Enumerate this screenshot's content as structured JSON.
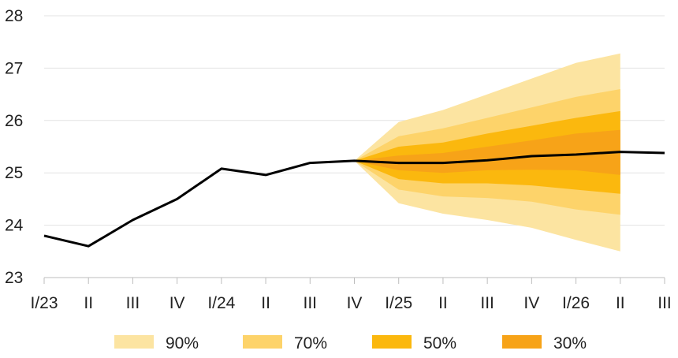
{
  "chart_data": {
    "type": "area",
    "title": "",
    "xlabel": "",
    "ylabel": "",
    "categories": [
      "I/23",
      "II",
      "III",
      "IV",
      "I/24",
      "II",
      "III",
      "IV",
      "I/25",
      "II",
      "III",
      "IV",
      "I/26",
      "II",
      "III"
    ],
    "ylim": [
      23,
      28
    ],
    "yticks": [
      23,
      24,
      25,
      26,
      27,
      28
    ],
    "grid": "horizontal",
    "legend_position": "bottom",
    "series": [
      {
        "type": "line",
        "color": "#000000",
        "values": [
          23.8,
          23.6,
          24.1,
          24.5,
          25.08,
          24.96,
          25.19,
          25.23,
          25.19,
          25.19,
          25.24,
          25.32,
          25.35,
          25.4,
          25.38
        ]
      }
    ],
    "fan": {
      "start_index": 7,
      "bands": [
        {
          "name": "90%",
          "color": "#fce4a1",
          "upper": [
            25.23,
            25.97,
            26.2,
            26.5,
            26.8,
            27.1,
            27.28
          ],
          "lower": [
            25.23,
            24.42,
            24.22,
            24.1,
            23.95,
            23.72,
            23.5
          ]
        },
        {
          "name": "70%",
          "color": "#fdd36a",
          "upper": [
            25.23,
            25.7,
            25.85,
            26.05,
            26.25,
            26.45,
            26.6
          ],
          "lower": [
            25.23,
            24.68,
            24.55,
            24.52,
            24.45,
            24.3,
            24.2
          ]
        },
        {
          "name": "50%",
          "color": "#fbb80e",
          "upper": [
            25.23,
            25.5,
            25.58,
            25.75,
            25.9,
            26.05,
            26.18
          ],
          "lower": [
            25.23,
            24.88,
            24.8,
            24.8,
            24.76,
            24.68,
            24.6
          ]
        },
        {
          "name": "30%",
          "color": "#f7a318",
          "upper": [
            25.23,
            25.33,
            25.38,
            25.5,
            25.62,
            25.75,
            25.82
          ],
          "lower": [
            25.23,
            25.05,
            25.0,
            25.05,
            25.06,
            25.05,
            24.96
          ]
        }
      ]
    },
    "legend": [
      "90%",
      "70%",
      "50%",
      "30%"
    ]
  }
}
